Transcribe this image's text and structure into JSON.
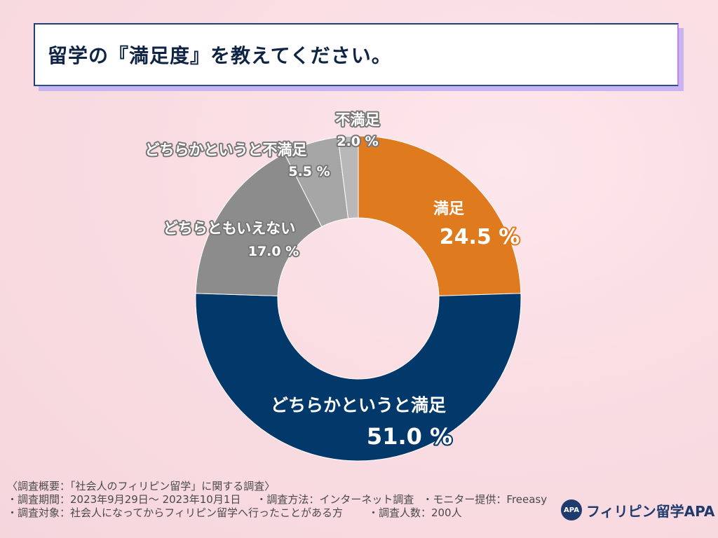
{
  "page_title": "留学の『満足度』を教えてください。",
  "chart_data": {
    "type": "pie",
    "variant": "donut",
    "title": "留学の『満足度』を教えてください。",
    "unit": "%",
    "slices": [
      {
        "label": "満足",
        "value": 24.5,
        "display": "24.5 %",
        "color": "#e07a1f"
      },
      {
        "label": "どちらかというと満足",
        "value": 51.0,
        "display": "51.0 %",
        "color": "#03386a"
      },
      {
        "label": "どちらともいえない",
        "value": 17.0,
        "display": "17.0 %",
        "color": "#8c8c8c"
      },
      {
        "label": "どちらかというと不満足",
        "value": 5.5,
        "display": "5.5 %",
        "color": "#a6a6a6"
      },
      {
        "label": "不満足",
        "value": 2.0,
        "display": "2.0 %",
        "color": "#b8b8b8"
      }
    ]
  },
  "footer": {
    "line1": "〈調査概要：「社会人のフィリピン留学」に関する調査〉",
    "period": "・調査期間：2023年9月29日〜 2023年10月1日",
    "method": "・調査方法：インターネット調査",
    "monitor": "・モニター提供：Freeasy",
    "target": "・調査対象：社会人になってからフィリピン留学へ行ったことがある方",
    "count": "・調査人数：200人"
  },
  "brand": {
    "logo_text": "APA",
    "name": "フィリピン留学APA",
    "color": "#1f3b6d"
  }
}
